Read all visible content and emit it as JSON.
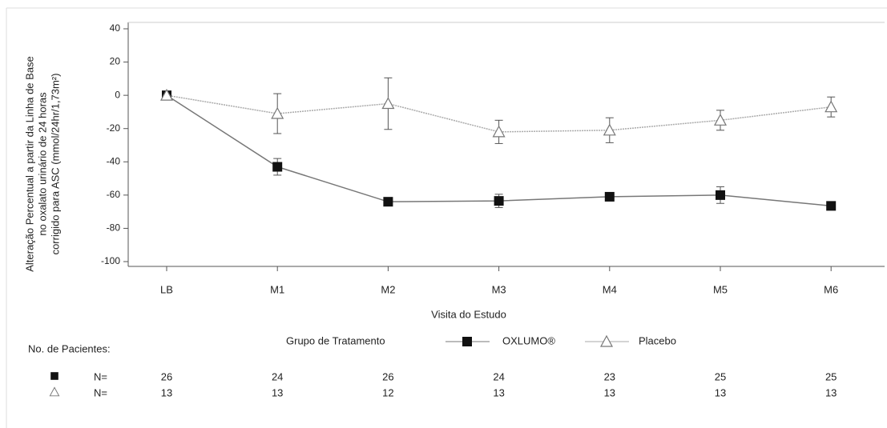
{
  "chart_data": {
    "type": "line",
    "y_label": [
      "Alteração Percentual a partir da Linha de Base",
      "no oxalato urinário de 24 horas",
      "corrigido para ASC (mmol/24hr/1,73m²)"
    ],
    "x_label": "Visita do Estudo",
    "categories": [
      "LB",
      "M1",
      "M2",
      "M3",
      "M4",
      "M5",
      "M6"
    ],
    "ylim": [
      -100,
      40
    ],
    "yticks": [
      -100,
      -80,
      -60,
      -40,
      -20,
      0,
      20,
      40
    ],
    "legend_title": "Grupo de Tratamento",
    "series": [
      {
        "name": "OXLUMO®",
        "color": "#777777",
        "marker": "square",
        "values": [
          0,
          -43,
          -64,
          -63.5,
          -61,
          -60,
          -66.5
        ],
        "errors": [
          0,
          5,
          2,
          4,
          2,
          5,
          2
        ]
      },
      {
        "name": "Placebo",
        "color": "#aaaaaa",
        "marker": "triangle",
        "values": [
          0,
          -11,
          -5,
          -22,
          -21,
          -15,
          -7
        ],
        "errors": [
          0,
          12,
          15.5,
          7,
          7.5,
          6,
          6
        ]
      }
    ]
  },
  "patients": {
    "title": "No. de Pacientes:",
    "rows": [
      {
        "label": "N=",
        "counts": [
          26,
          24,
          26,
          24,
          23,
          25,
          25
        ]
      },
      {
        "label": "N=",
        "counts": [
          13,
          13,
          12,
          13,
          13,
          13,
          13
        ]
      }
    ]
  }
}
